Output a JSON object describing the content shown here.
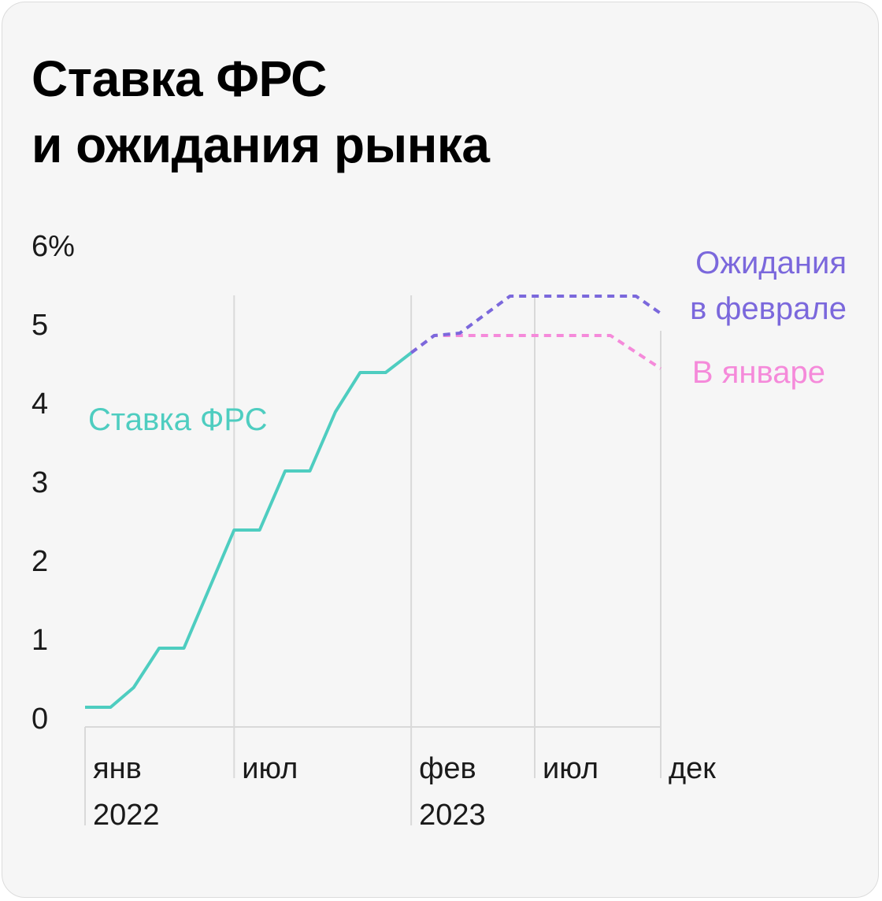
{
  "title_line1": "Ставка ФРС",
  "title_line2": "и ожидания рынка",
  "chart_data": {
    "type": "line",
    "title": "Ставка ФРС и ожидания рынка",
    "y_unit": "%",
    "ylim": [
      0,
      6
    ],
    "y_ticks": [
      "6%",
      "5",
      "4",
      "3",
      "2",
      "1",
      "0"
    ],
    "y_tick_values": [
      6,
      5,
      4,
      3,
      2,
      1,
      0
    ],
    "x_ticks": [
      {
        "label": "янв",
        "year": "2022",
        "x": "2022-01-01"
      },
      {
        "label": "июл",
        "year": "",
        "x": "2022-07-01"
      },
      {
        "label": "фев",
        "year": "2023",
        "x": "2023-02-01"
      },
      {
        "label": "июл",
        "year": "",
        "x": "2023-07-01"
      },
      {
        "label": "дек",
        "year": "",
        "x": "2023-12-01"
      }
    ],
    "xlim": [
      "2022-01-01",
      "2023-12-01"
    ],
    "grid": "vertical",
    "colors": {
      "fed": "#4ecdc0",
      "feb": "#7b68dc",
      "jan": "#f58ada",
      "grid": "#d9d9d9"
    },
    "series": [
      {
        "name": "Ставка ФРС",
        "style": "solid",
        "color_key": "fed",
        "points": [
          [
            "2022-01-01",
            0.25
          ],
          [
            "2022-02-01",
            0.25
          ],
          [
            "2022-03-01",
            0.5
          ],
          [
            "2022-04-01",
            1.0
          ],
          [
            "2022-05-01",
            1.0
          ],
          [
            "2022-07-01",
            2.5
          ],
          [
            "2022-08-01",
            2.5
          ],
          [
            "2022-09-01",
            3.25
          ],
          [
            "2022-10-01",
            3.25
          ],
          [
            "2022-11-01",
            4.0
          ],
          [
            "2022-12-01",
            4.5
          ],
          [
            "2023-01-01",
            4.5
          ],
          [
            "2023-02-01",
            4.75
          ]
        ]
      },
      {
        "name": "Ожидания в феврале",
        "label_lines": [
          "Ожидания",
          "в феврале"
        ],
        "style": "dashed",
        "color_key": "feb",
        "points": [
          [
            "2023-02-01",
            4.75
          ],
          [
            "2023-03-01",
            4.97
          ],
          [
            "2023-04-01",
            5.0
          ],
          [
            "2023-06-01",
            5.47
          ],
          [
            "2023-11-01",
            5.47
          ],
          [
            "2023-12-01",
            5.25
          ]
        ]
      },
      {
        "name": "В январе",
        "label_lines": [
          "В январе"
        ],
        "style": "dashed",
        "color_key": "jan",
        "points": [
          [
            "2023-02-01",
            4.75
          ],
          [
            "2023-03-01",
            4.97
          ],
          [
            "2023-10-01",
            4.97
          ],
          [
            "2023-12-01",
            4.55
          ]
        ]
      }
    ]
  }
}
